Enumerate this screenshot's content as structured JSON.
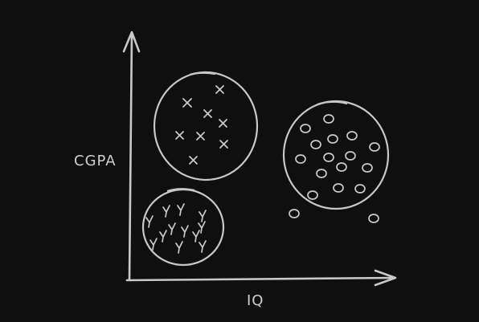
{
  "axes": {
    "y_label": "CGPA",
    "x_label": "IQ"
  },
  "clusters": [
    {
      "name": "cluster-x",
      "marker": "×",
      "count": 9
    },
    {
      "name": "cluster-y",
      "marker": "y",
      "count": 12
    },
    {
      "name": "cluster-o",
      "marker": "o",
      "count": 16
    }
  ],
  "outliers": [
    {
      "marker": "o",
      "count": 2
    }
  ],
  "colors": {
    "background": "#0f0f0f",
    "stroke": "#c8c8c8"
  }
}
